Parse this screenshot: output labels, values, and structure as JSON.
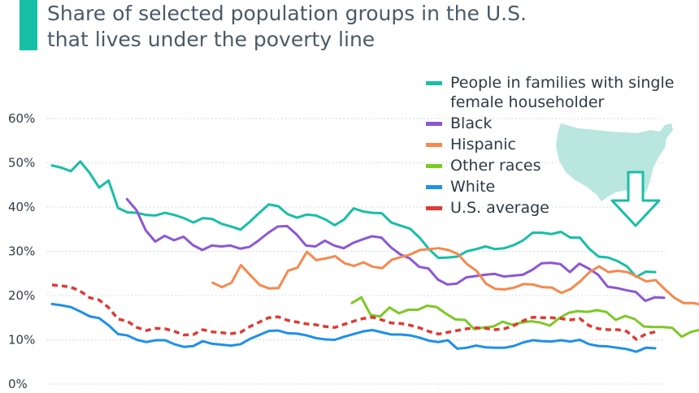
{
  "header": {
    "title_line1": "Share of selected population groups in the U.S.",
    "title_line2": "that lives under the poverty line",
    "accent_color": "#17bfa6"
  },
  "decoration": {
    "map_icon": "us-map-icon",
    "arrow_icon": "down-arrow-icon",
    "map_color": "#b9e6df",
    "arrow_color": "#17bfa6"
  },
  "chart_data": {
    "type": "line",
    "title": "Share of selected population groups in the U.S. that lives under the poverty line",
    "ylim": [
      0,
      60
    ],
    "y_ticks": [
      "0%",
      "10%",
      "20%",
      "30%",
      "40%",
      "50%",
      "60%"
    ],
    "x_range": [
      1959,
      2016
    ],
    "grid": "horizontal-dotted",
    "legend_position": "top-right",
    "series": [
      {
        "name": "People in families with single female householder",
        "color": "#17bfa6",
        "dashed": false,
        "x_start": 1959,
        "values": [
          49.4,
          48.9,
          48.1,
          50.3,
          47.7,
          44.4,
          46.0,
          39.8,
          38.8,
          38.7,
          38.2,
          38.1,
          38.7,
          38.2,
          37.5,
          36.5,
          37.5,
          37.3,
          36.2,
          35.6,
          34.9,
          36.7,
          38.7,
          40.6,
          40.2,
          38.4,
          37.6,
          38.3,
          38.1,
          37.2,
          35.9,
          37.2,
          39.7,
          39.0,
          38.7,
          38.6,
          36.5,
          35.8,
          35.1,
          33.1,
          30.5,
          28.5,
          28.6,
          28.8,
          30.0,
          30.5,
          31.1,
          30.5,
          30.7,
          31.4,
          32.5,
          34.2,
          34.2,
          33.9,
          34.4,
          33.1,
          33.1,
          30.6,
          28.8,
          28.6,
          27.8,
          26.6,
          24.2,
          25.4,
          25.3
        ]
      },
      {
        "name": "Black",
        "color": "#8d57d4",
        "dashed": false,
        "x_start": 1966,
        "values": [
          41.8,
          39.3,
          34.7,
          32.2,
          33.5,
          32.5,
          33.3,
          31.4,
          30.3,
          31.3,
          31.1,
          31.3,
          30.6,
          31.0,
          32.5,
          34.2,
          35.6,
          35.7,
          33.8,
          31.3,
          31.1,
          32.4,
          31.3,
          30.7,
          31.9,
          32.7,
          33.4,
          33.1,
          30.9,
          29.3,
          28.4,
          26.5,
          26.1,
          23.6,
          22.5,
          22.7,
          24.1,
          24.4,
          24.7,
          24.9,
          24.3,
          24.5,
          24.7,
          25.8,
          27.3,
          27.4,
          27.1,
          25.3,
          27.2,
          26.1,
          24.7,
          22.0,
          21.7,
          21.2,
          20.8,
          18.8,
          19.6,
          19.5
        ]
      },
      {
        "name": "Hispanic",
        "color": "#f5894e",
        "dashed": false,
        "x_start": 1974,
        "values": [
          22.9,
          21.9,
          22.9,
          26.9,
          24.6,
          22.4,
          21.6,
          21.7,
          25.6,
          26.3,
          29.9,
          28.0,
          28.4,
          28.9,
          27.3,
          26.7,
          27.5,
          26.5,
          26.2,
          28.1,
          28.7,
          29.3,
          30.3,
          30.5,
          30.7,
          30.3,
          29.4,
          27.1,
          25.6,
          22.7,
          21.5,
          21.4,
          21.8,
          22.6,
          22.5,
          21.9,
          21.8,
          20.6,
          21.5,
          23.2,
          25.3,
          26.6,
          25.3,
          25.6,
          25.3,
          24.3,
          23.2,
          23.5,
          21.4,
          19.5,
          18.3,
          18.3,
          17.9,
          16.8,
          15.5,
          16.9,
          17.0
        ]
      },
      {
        "name": "Other races",
        "color": "#7dc926",
        "dashed": false,
        "x_start": 1987,
        "values": [
          18.3,
          19.6,
          15.6,
          15.3,
          17.3,
          16.0,
          16.8,
          16.8,
          17.7,
          17.4,
          15.9,
          14.6,
          14.5,
          12.4,
          12.8,
          13.0,
          14.1,
          13.4,
          13.9,
          14.2,
          13.9,
          13.2,
          14.9,
          16.1,
          16.5,
          16.3,
          16.7,
          16.3,
          14.5,
          15.4,
          14.7,
          13.0,
          12.9,
          12.9,
          12.7,
          10.7,
          11.8,
          12.3
        ]
      },
      {
        "name": "White",
        "color": "#1e90e8",
        "dashed": false,
        "x_start": 1959,
        "values": [
          18.1,
          17.8,
          17.4,
          16.4,
          15.3,
          14.9,
          13.3,
          11.3,
          11.0,
          10.0,
          9.5,
          9.9,
          9.9,
          9.0,
          8.4,
          8.6,
          9.7,
          9.1,
          8.9,
          8.7,
          9.0,
          10.2,
          11.1,
          12.0,
          12.1,
          11.5,
          11.4,
          11.0,
          10.4,
          10.1,
          10.0,
          10.7,
          11.3,
          11.9,
          12.2,
          11.7,
          11.2,
          11.2,
          11.0,
          10.5,
          9.8,
          9.5,
          9.9,
          8.0,
          8.2,
          8.7,
          8.3,
          8.2,
          8.2,
          8.6,
          9.4,
          9.9,
          9.7,
          9.6,
          9.9,
          9.6,
          10.0,
          9.0,
          8.6,
          8.5,
          8.2,
          7.9,
          7.3,
          8.2,
          8.1
        ]
      },
      {
        "name": "U.S. average",
        "color": "#dd3b33",
        "dashed": true,
        "x_start": 1959,
        "values": [
          22.4,
          22.2,
          21.9,
          21.0,
          19.5,
          19.0,
          17.3,
          14.7,
          14.2,
          12.8,
          12.1,
          12.6,
          12.5,
          11.9,
          11.1,
          11.2,
          12.3,
          11.8,
          11.6,
          11.4,
          11.7,
          13.0,
          14.0,
          15.0,
          15.2,
          14.4,
          14.0,
          13.6,
          13.4,
          13.0,
          12.8,
          13.5,
          14.2,
          14.8,
          15.1,
          14.5,
          13.8,
          13.7,
          13.3,
          12.7,
          11.9,
          11.3,
          11.7,
          12.1,
          12.5,
          12.7,
          12.6,
          12.3,
          12.5,
          13.2,
          14.3,
          15.1,
          15.0,
          15.0,
          14.8,
          14.5,
          14.8,
          13.2,
          12.5,
          12.3,
          12.3,
          11.9,
          10.1,
          11.3,
          11.8
        ]
      }
    ]
  }
}
